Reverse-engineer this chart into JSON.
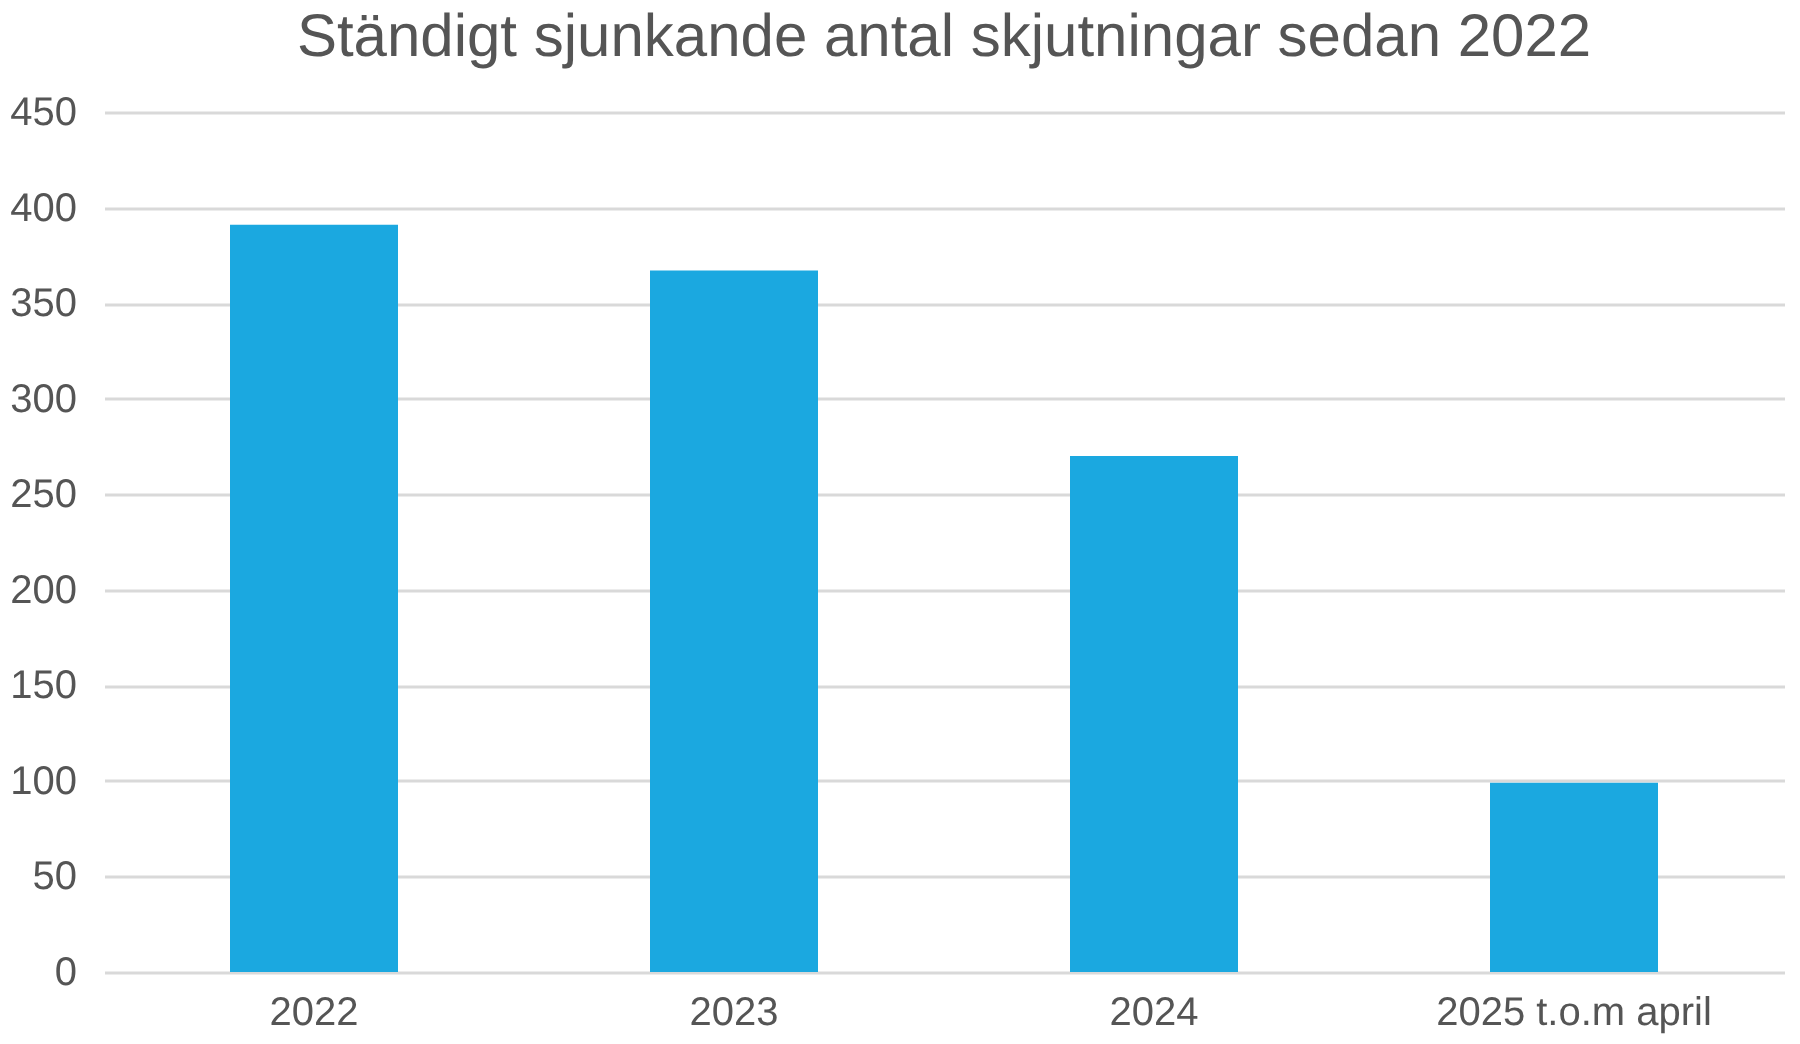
{
  "chart_data": {
    "type": "bar",
    "title": "Ständigt sjunkande antal skjutningar sedan 2022",
    "categories": [
      "2022",
      "2023",
      "2024",
      "2025 t.o.m april"
    ],
    "values": [
      391,
      367,
      270,
      99
    ],
    "color": "#1ba8e0",
    "ylim": [
      0,
      450
    ],
    "yticks": [
      0,
      50,
      100,
      150,
      200,
      250,
      300,
      350,
      400,
      450
    ],
    "grid": "y"
  }
}
